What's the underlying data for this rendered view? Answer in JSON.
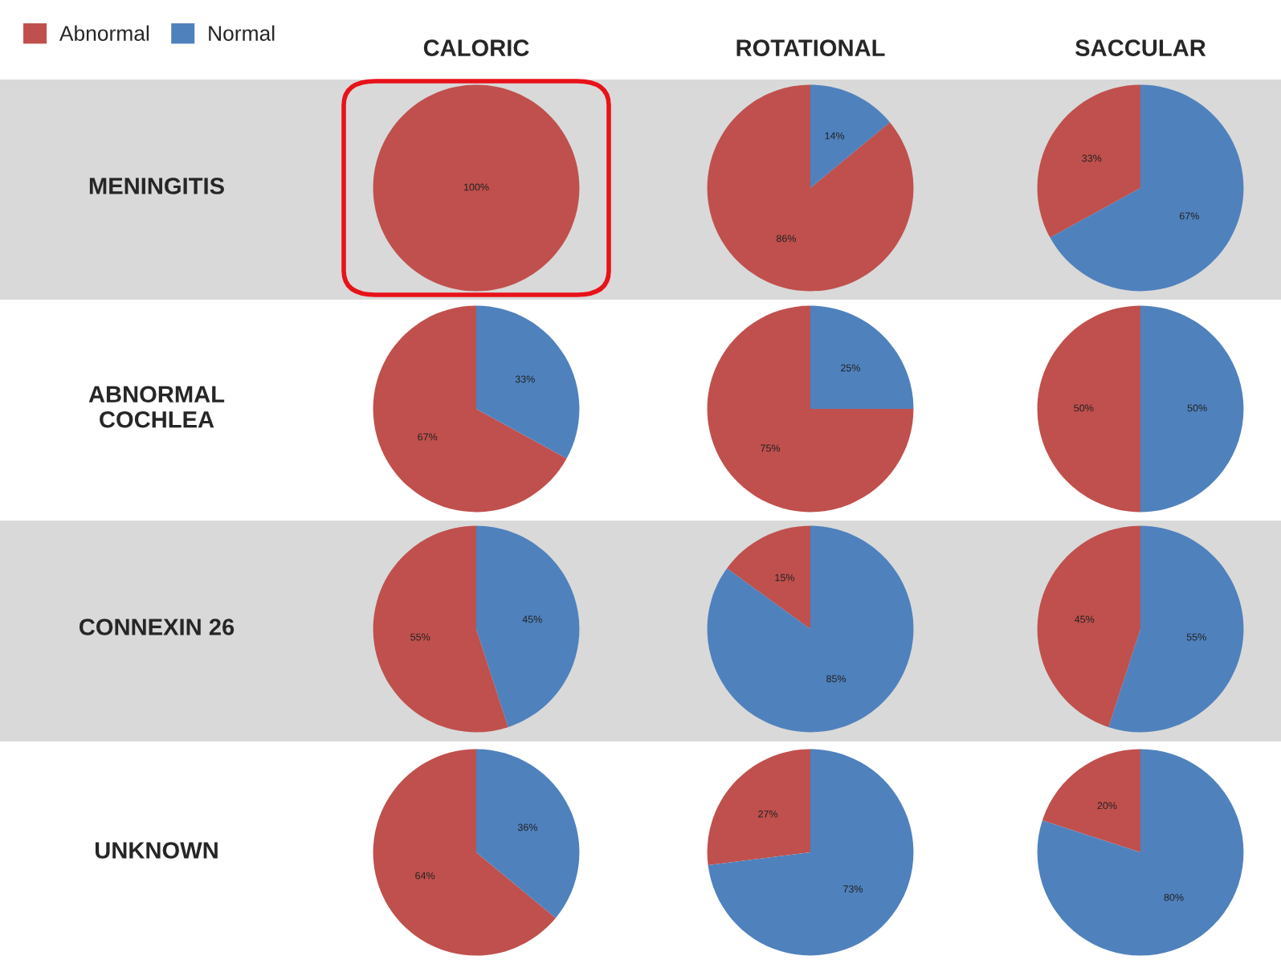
{
  "chart_data": [
    {
      "type": "pie",
      "title": "CALORIC",
      "ylabel": "MENINGITIS",
      "legend": "top left",
      "categories": [
        "Abnormal",
        "Normal"
      ],
      "values": [
        100,
        0
      ],
      "colors": [
        "#c0504d",
        "#4f81bd"
      ],
      "value_labels": [
        "100%",
        null
      ]
    },
    {
      "type": "pie",
      "title": "ROTATIONAL",
      "categories": [
        null,
        null
      ],
      "values": [
        86,
        14
      ],
      "colors": [
        "#c0504d",
        "#4f81bd"
      ],
      "value_labels": [
        "86%",
        "14%"
      ]
    },
    {
      "type": "pie",
      "title": "SACCULAR",
      "categories": [
        null,
        null
      ],
      "values": [
        33,
        67
      ],
      "colors": [
        "#c0504d",
        "#4f81bd"
      ],
      "value_labels": [
        "33%",
        "67%"
      ]
    },
    {
      "type": "pie",
      "ylabel": "ABNORMAL\nCOCHLEA",
      "categories": [
        null,
        null
      ],
      "values": [
        67,
        33
      ],
      "colors": [
        "#c0504d",
        "#4f81bd"
      ],
      "value_labels": [
        "67%",
        "33%"
      ]
    },
    {
      "type": "pie",
      "categories": [
        null,
        null
      ],
      "values": [
        75,
        25
      ],
      "colors": [
        "#c0504d",
        "#4f81bd"
      ],
      "value_labels": [
        "75%",
        "25%"
      ]
    },
    {
      "type": "pie",
      "categories": [
        null,
        null
      ],
      "values": [
        50,
        50
      ],
      "colors": [
        "#c0504d",
        "#4f81bd"
      ],
      "value_labels": [
        "50%",
        "50%"
      ]
    },
    {
      "type": "pie",
      "ylabel": "CONNEXIN 26",
      "categories": [
        null,
        null
      ],
      "values": [
        55,
        45
      ],
      "colors": [
        "#c0504d",
        "#4f81bd"
      ],
      "value_labels": [
        "55%",
        "45%"
      ]
    },
    {
      "type": "pie",
      "categories": [
        null,
        null
      ],
      "values": [
        15,
        85
      ],
      "colors": [
        "#c0504d",
        "#4f81bd"
      ],
      "value_labels": [
        "15%",
        "85%"
      ]
    },
    {
      "type": "pie",
      "categories": [
        null,
        null
      ],
      "values": [
        45,
        55
      ],
      "colors": [
        "#c0504d",
        "#4f81bd"
      ],
      "value_labels": [
        "45%",
        "55%"
      ]
    },
    {
      "type": "pie",
      "ylabel": "UNKNOWN",
      "categories": [
        null,
        null
      ],
      "values": [
        64,
        36
      ],
      "colors": [
        "#c0504d",
        "#4f81bd"
      ],
      "value_labels": [
        "64%",
        "36%"
      ]
    },
    {
      "type": "pie",
      "categories": [
        null,
        null
      ],
      "values": [
        27,
        73
      ],
      "colors": [
        "#c0504d",
        "#4f81bd"
      ],
      "value_labels": [
        "27%",
        "73%"
      ]
    },
    {
      "type": "pie",
      "categories": [
        null,
        null
      ],
      "values": [
        20,
        80
      ],
      "colors": [
        "#c0504d",
        "#4f81bd"
      ],
      "value_labels": [
        "20%",
        "80%"
      ]
    }
  ]
}
